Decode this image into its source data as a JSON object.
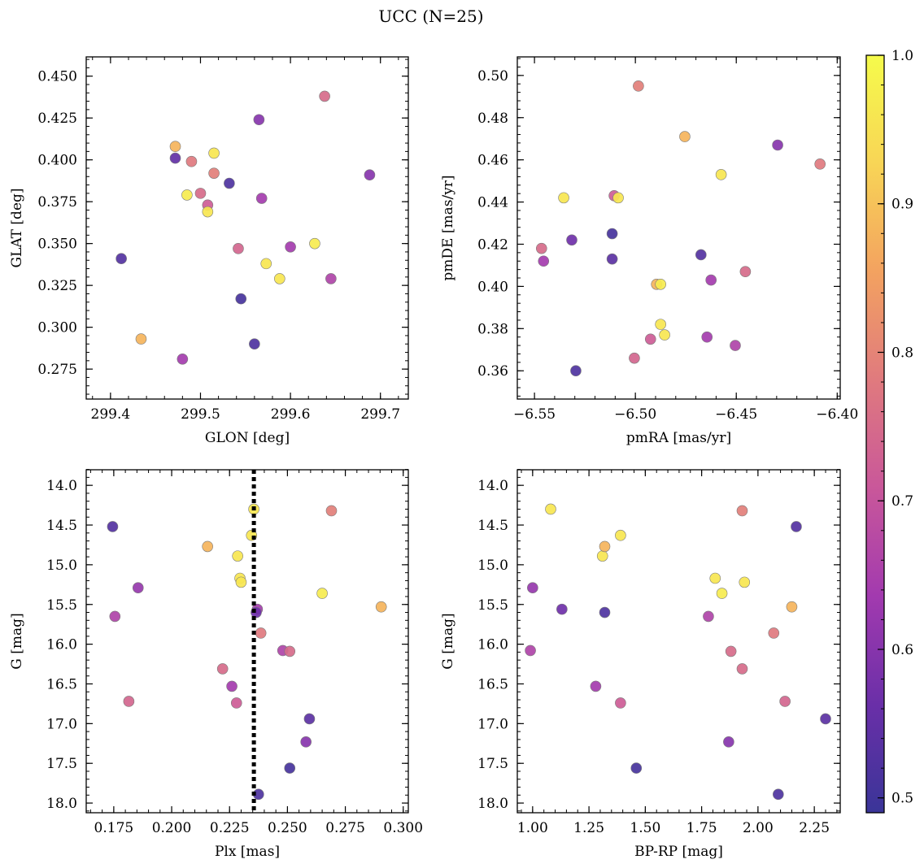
{
  "title": "UCC (N=25)",
  "colorbar": {
    "range": [
      0.49,
      1.0
    ],
    "ticks": [
      0.5,
      0.6,
      0.7,
      0.8,
      0.9,
      1.0
    ],
    "tick_labels": [
      "0.5",
      "0.6",
      "0.7",
      "0.8",
      "0.9",
      "1.0"
    ],
    "colormap": "plasma",
    "stops": [
      "#3a3598",
      "#6a2fa8",
      "#a23aaf",
      "#c9579a",
      "#e07a7e",
      "#f3a260",
      "#f8d556",
      "#f5fb4b"
    ]
  },
  "chart_data": [
    {
      "type": "scatter",
      "id": "glon-glat",
      "xlabel": "GLON [deg]",
      "ylabel": "GLAT [deg]",
      "xlim": [
        299.373,
        299.731
      ],
      "ylim": [
        0.2571,
        0.4615
      ],
      "xticks": [
        299.4,
        299.5,
        299.6,
        299.7
      ],
      "xtick_labels": [
        "299.4",
        "299.5",
        "299.6",
        "299.7"
      ],
      "yticks": [
        0.275,
        0.3,
        0.325,
        0.35,
        0.375,
        0.4,
        0.425,
        0.45
      ],
      "ytick_labels": [
        "0.275",
        "0.300",
        "0.325",
        "0.350",
        "0.375",
        "0.400",
        "0.425",
        "0.450"
      ],
      "points": [
        {
          "x": 299.412,
          "y": 0.341,
          "c": 0.53
        },
        {
          "x": 299.434,
          "y": 0.293,
          "c": 0.88
        },
        {
          "x": 299.472,
          "y": 0.408,
          "c": 0.88
        },
        {
          "x": 299.472,
          "y": 0.401,
          "c": 0.55
        },
        {
          "x": 299.48,
          "y": 0.281,
          "c": 0.64
        },
        {
          "x": 299.485,
          "y": 0.379,
          "c": 0.97
        },
        {
          "x": 299.49,
          "y": 0.399,
          "c": 0.78
        },
        {
          "x": 299.5,
          "y": 0.38,
          "c": 0.75
        },
        {
          "x": 299.508,
          "y": 0.373,
          "c": 0.72
        },
        {
          "x": 299.508,
          "y": 0.369,
          "c": 0.96
        },
        {
          "x": 299.515,
          "y": 0.404,
          "c": 0.96
        },
        {
          "x": 299.515,
          "y": 0.392,
          "c": 0.79
        },
        {
          "x": 299.532,
          "y": 0.386,
          "c": 0.52
        },
        {
          "x": 299.542,
          "y": 0.347,
          "c": 0.74
        },
        {
          "x": 299.545,
          "y": 0.317,
          "c": 0.51
        },
        {
          "x": 299.56,
          "y": 0.29,
          "c": 0.52
        },
        {
          "x": 299.565,
          "y": 0.424,
          "c": 0.6
        },
        {
          "x": 299.568,
          "y": 0.377,
          "c": 0.64
        },
        {
          "x": 299.573,
          "y": 0.338,
          "c": 0.96
        },
        {
          "x": 299.588,
          "y": 0.329,
          "c": 0.96
        },
        {
          "x": 299.6,
          "y": 0.348,
          "c": 0.64
        },
        {
          "x": 299.627,
          "y": 0.35,
          "c": 0.97
        },
        {
          "x": 299.638,
          "y": 0.438,
          "c": 0.75
        },
        {
          "x": 299.645,
          "y": 0.329,
          "c": 0.66
        },
        {
          "x": 299.688,
          "y": 0.391,
          "c": 0.6
        }
      ]
    },
    {
      "type": "scatter",
      "id": "pmra-pmde",
      "xlabel": "pmRA [mas/yr]",
      "ylabel": "pmDE [mas/yr]",
      "xlim": [
        -6.5585,
        -6.3985
      ],
      "ylim": [
        0.3466,
        0.5088
      ],
      "xticks": [
        -6.55,
        -6.5,
        -6.45,
        -6.4
      ],
      "xtick_labels": [
        "−6.55",
        "−6.50",
        "−6.45",
        "−6.40"
      ],
      "yticks": [
        0.36,
        0.38,
        0.4,
        0.42,
        0.44,
        0.46,
        0.48,
        0.5
      ],
      "ytick_labels": [
        "0.36",
        "0.38",
        "0.40",
        "0.42",
        "0.44",
        "0.46",
        "0.48",
        "0.50"
      ],
      "points": [
        {
          "x": -6.5465,
          "y": 0.418,
          "c": 0.75
        },
        {
          "x": -6.5455,
          "y": 0.412,
          "c": 0.64
        },
        {
          "x": -6.5355,
          "y": 0.442,
          "c": 0.96
        },
        {
          "x": -6.5315,
          "y": 0.422,
          "c": 0.57
        },
        {
          "x": -6.5295,
          "y": 0.36,
          "c": 0.52
        },
        {
          "x": -6.5115,
          "y": 0.425,
          "c": 0.51
        },
        {
          "x": -6.5115,
          "y": 0.413,
          "c": 0.54
        },
        {
          "x": -6.5105,
          "y": 0.443,
          "c": 0.72
        },
        {
          "x": -6.5085,
          "y": 0.442,
          "c": 0.96
        },
        {
          "x": -6.4985,
          "y": 0.495,
          "c": 0.79
        },
        {
          "x": -6.5005,
          "y": 0.366,
          "c": 0.74
        },
        {
          "x": -6.4925,
          "y": 0.375,
          "c": 0.72
        },
        {
          "x": -6.4895,
          "y": 0.401,
          "c": 0.88
        },
        {
          "x": -6.4875,
          "y": 0.401,
          "c": 0.97
        },
        {
          "x": -6.4875,
          "y": 0.382,
          "c": 0.96
        },
        {
          "x": -6.4855,
          "y": 0.377,
          "c": 0.96
        },
        {
          "x": -6.4755,
          "y": 0.471,
          "c": 0.88
        },
        {
          "x": -6.4675,
          "y": 0.415,
          "c": 0.53
        },
        {
          "x": -6.4645,
          "y": 0.376,
          "c": 0.64
        },
        {
          "x": -6.4625,
          "y": 0.403,
          "c": 0.64
        },
        {
          "x": -6.4575,
          "y": 0.453,
          "c": 0.96
        },
        {
          "x": -6.4505,
          "y": 0.372,
          "c": 0.66
        },
        {
          "x": -6.4455,
          "y": 0.407,
          "c": 0.75
        },
        {
          "x": -6.4295,
          "y": 0.467,
          "c": 0.6
        },
        {
          "x": -6.4085,
          "y": 0.458,
          "c": 0.78
        }
      ]
    },
    {
      "type": "scatter",
      "id": "plx-g",
      "xlabel": "Plx [mas]",
      "ylabel": "G [mag]",
      "xlim": [
        0.1631,
        0.3022
      ],
      "ylim": [
        18.122,
        13.804
      ],
      "xticks": [
        0.175,
        0.2,
        0.225,
        0.25,
        0.275,
        0.3
      ],
      "xtick_labels": [
        "0.175",
        "0.200",
        "0.225",
        "0.250",
        "0.275",
        "0.300"
      ],
      "yticks": [
        14.0,
        14.5,
        15.0,
        15.5,
        16.0,
        16.5,
        17.0,
        17.5,
        18.0
      ],
      "ytick_labels": [
        "14.0",
        "14.5",
        "15.0",
        "15.5",
        "16.0",
        "16.5",
        "17.0",
        "17.5",
        "18.0"
      ],
      "vline": 0.2355,
      "points": [
        {
          "x": 0.1745,
          "y": 14.52,
          "c": 0.53
        },
        {
          "x": 0.1755,
          "y": 15.65,
          "c": 0.66
        },
        {
          "x": 0.1815,
          "y": 16.72,
          "c": 0.74
        },
        {
          "x": 0.1855,
          "y": 15.29,
          "c": 0.62
        },
        {
          "x": 0.2155,
          "y": 14.77,
          "c": 0.88
        },
        {
          "x": 0.222,
          "y": 16.31,
          "c": 0.75
        },
        {
          "x": 0.226,
          "y": 16.53,
          "c": 0.64
        },
        {
          "x": 0.228,
          "y": 16.74,
          "c": 0.72
        },
        {
          "x": 0.2285,
          "y": 14.89,
          "c": 0.96
        },
        {
          "x": 0.2295,
          "y": 15.17,
          "c": 0.96
        },
        {
          "x": 0.23,
          "y": 15.22,
          "c": 0.96
        },
        {
          "x": 0.2345,
          "y": 14.63,
          "c": 0.96
        },
        {
          "x": 0.2355,
          "y": 14.3,
          "c": 0.96
        },
        {
          "x": 0.237,
          "y": 15.56,
          "c": 0.64
        },
        {
          "x": 0.2365,
          "y": 15.6,
          "c": 0.57
        },
        {
          "x": 0.2375,
          "y": 17.89,
          "c": 0.52
        },
        {
          "x": 0.2385,
          "y": 15.86,
          "c": 0.78
        },
        {
          "x": 0.248,
          "y": 16.08,
          "c": 0.66
        },
        {
          "x": 0.251,
          "y": 16.09,
          "c": 0.75
        },
        {
          "x": 0.251,
          "y": 17.56,
          "c": 0.51
        },
        {
          "x": 0.258,
          "y": 17.23,
          "c": 0.6
        },
        {
          "x": 0.2595,
          "y": 16.94,
          "c": 0.54
        },
        {
          "x": 0.265,
          "y": 15.36,
          "c": 0.97
        },
        {
          "x": 0.269,
          "y": 14.32,
          "c": 0.79
        },
        {
          "x": 0.2905,
          "y": 15.53,
          "c": 0.88
        }
      ]
    },
    {
      "type": "scatter",
      "id": "bprp-g",
      "xlabel": "BP-RP [mag]",
      "ylabel": "G [mag]",
      "xlim": [
        0.932,
        2.365
      ],
      "ylim": [
        18.122,
        13.804
      ],
      "xticks": [
        1.0,
        1.25,
        1.5,
        1.75,
        2.0,
        2.25
      ],
      "xtick_labels": [
        "1.00",
        "1.25",
        "1.50",
        "1.75",
        "2.00",
        "2.25"
      ],
      "yticks": [
        14.0,
        14.5,
        15.0,
        15.5,
        16.0,
        16.5,
        17.0,
        17.5,
        18.0
      ],
      "ytick_labels": [
        "14.0",
        "14.5",
        "15.0",
        "15.5",
        "16.0",
        "16.5",
        "17.0",
        "17.5",
        "18.0"
      ],
      "points": [
        {
          "x": 0.99,
          "y": 16.08,
          "c": 0.66
        },
        {
          "x": 1.0,
          "y": 15.29,
          "c": 0.62
        },
        {
          "x": 1.08,
          "y": 14.3,
          "c": 0.96
        },
        {
          "x": 1.13,
          "y": 15.56,
          "c": 0.57
        },
        {
          "x": 1.28,
          "y": 16.53,
          "c": 0.64
        },
        {
          "x": 1.31,
          "y": 14.89,
          "c": 0.96
        },
        {
          "x": 1.32,
          "y": 14.77,
          "c": 0.88
        },
        {
          "x": 1.32,
          "y": 15.6,
          "c": 0.52
        },
        {
          "x": 1.39,
          "y": 14.63,
          "c": 0.96
        },
        {
          "x": 1.39,
          "y": 16.74,
          "c": 0.72
        },
        {
          "x": 1.46,
          "y": 17.56,
          "c": 0.51
        },
        {
          "x": 1.78,
          "y": 15.65,
          "c": 0.66
        },
        {
          "x": 1.81,
          "y": 15.17,
          "c": 0.96
        },
        {
          "x": 1.84,
          "y": 15.36,
          "c": 0.97
        },
        {
          "x": 1.87,
          "y": 17.23,
          "c": 0.6
        },
        {
          "x": 1.88,
          "y": 16.09,
          "c": 0.75
        },
        {
          "x": 1.93,
          "y": 14.32,
          "c": 0.79
        },
        {
          "x": 1.93,
          "y": 16.31,
          "c": 0.75
        },
        {
          "x": 1.94,
          "y": 15.22,
          "c": 0.96
        },
        {
          "x": 2.07,
          "y": 15.86,
          "c": 0.78
        },
        {
          "x": 2.09,
          "y": 17.89,
          "c": 0.52
        },
        {
          "x": 2.12,
          "y": 16.72,
          "c": 0.74
        },
        {
          "x": 2.15,
          "y": 15.53,
          "c": 0.88
        },
        {
          "x": 2.17,
          "y": 14.52,
          "c": 0.53
        },
        {
          "x": 2.3,
          "y": 16.94,
          "c": 0.54
        }
      ]
    }
  ]
}
